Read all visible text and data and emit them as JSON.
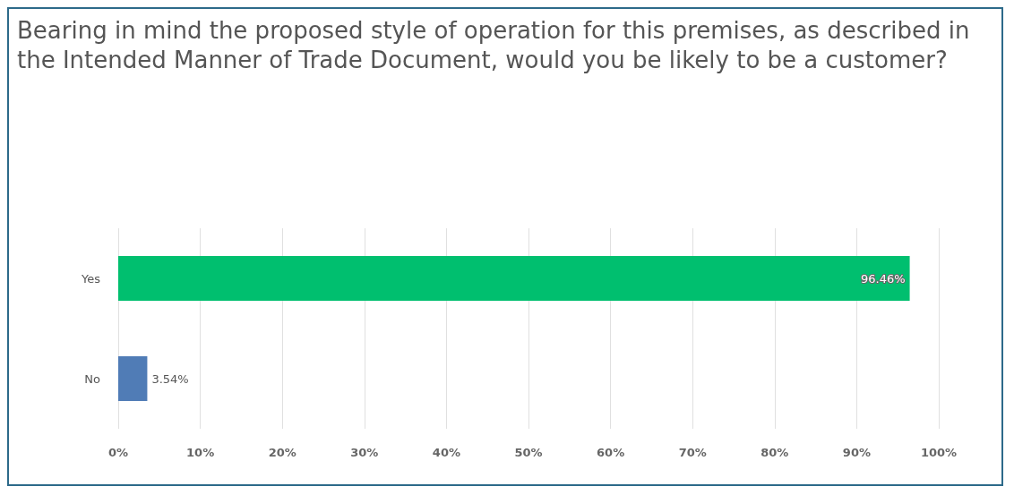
{
  "chart_data": {
    "type": "bar",
    "orientation": "horizontal",
    "title": "Bearing in mind the proposed style of operation for this premises, as described in the Intended Manner of Trade Document, would you be likely to be a customer?",
    "categories": [
      "Yes",
      "No"
    ],
    "values": [
      96.46,
      3.54
    ],
    "colors": [
      "#00bf6f",
      "#507cb6"
    ],
    "value_labels": [
      "96.46%",
      "3.54%"
    ],
    "xlim": [
      0,
      100
    ],
    "xticks": [
      {
        "value": 0,
        "label": "0%"
      },
      {
        "value": 10,
        "label": "10%"
      },
      {
        "value": 20,
        "label": "20%"
      },
      {
        "value": 30,
        "label": "30%"
      },
      {
        "value": 40,
        "label": "40%"
      },
      {
        "value": 50,
        "label": "50%"
      },
      {
        "value": 60,
        "label": "60%"
      },
      {
        "value": 70,
        "label": "70%"
      },
      {
        "value": 80,
        "label": "80%"
      },
      {
        "value": 90,
        "label": "90%"
      },
      {
        "value": 100,
        "label": "100%"
      }
    ],
    "grid": "x"
  }
}
